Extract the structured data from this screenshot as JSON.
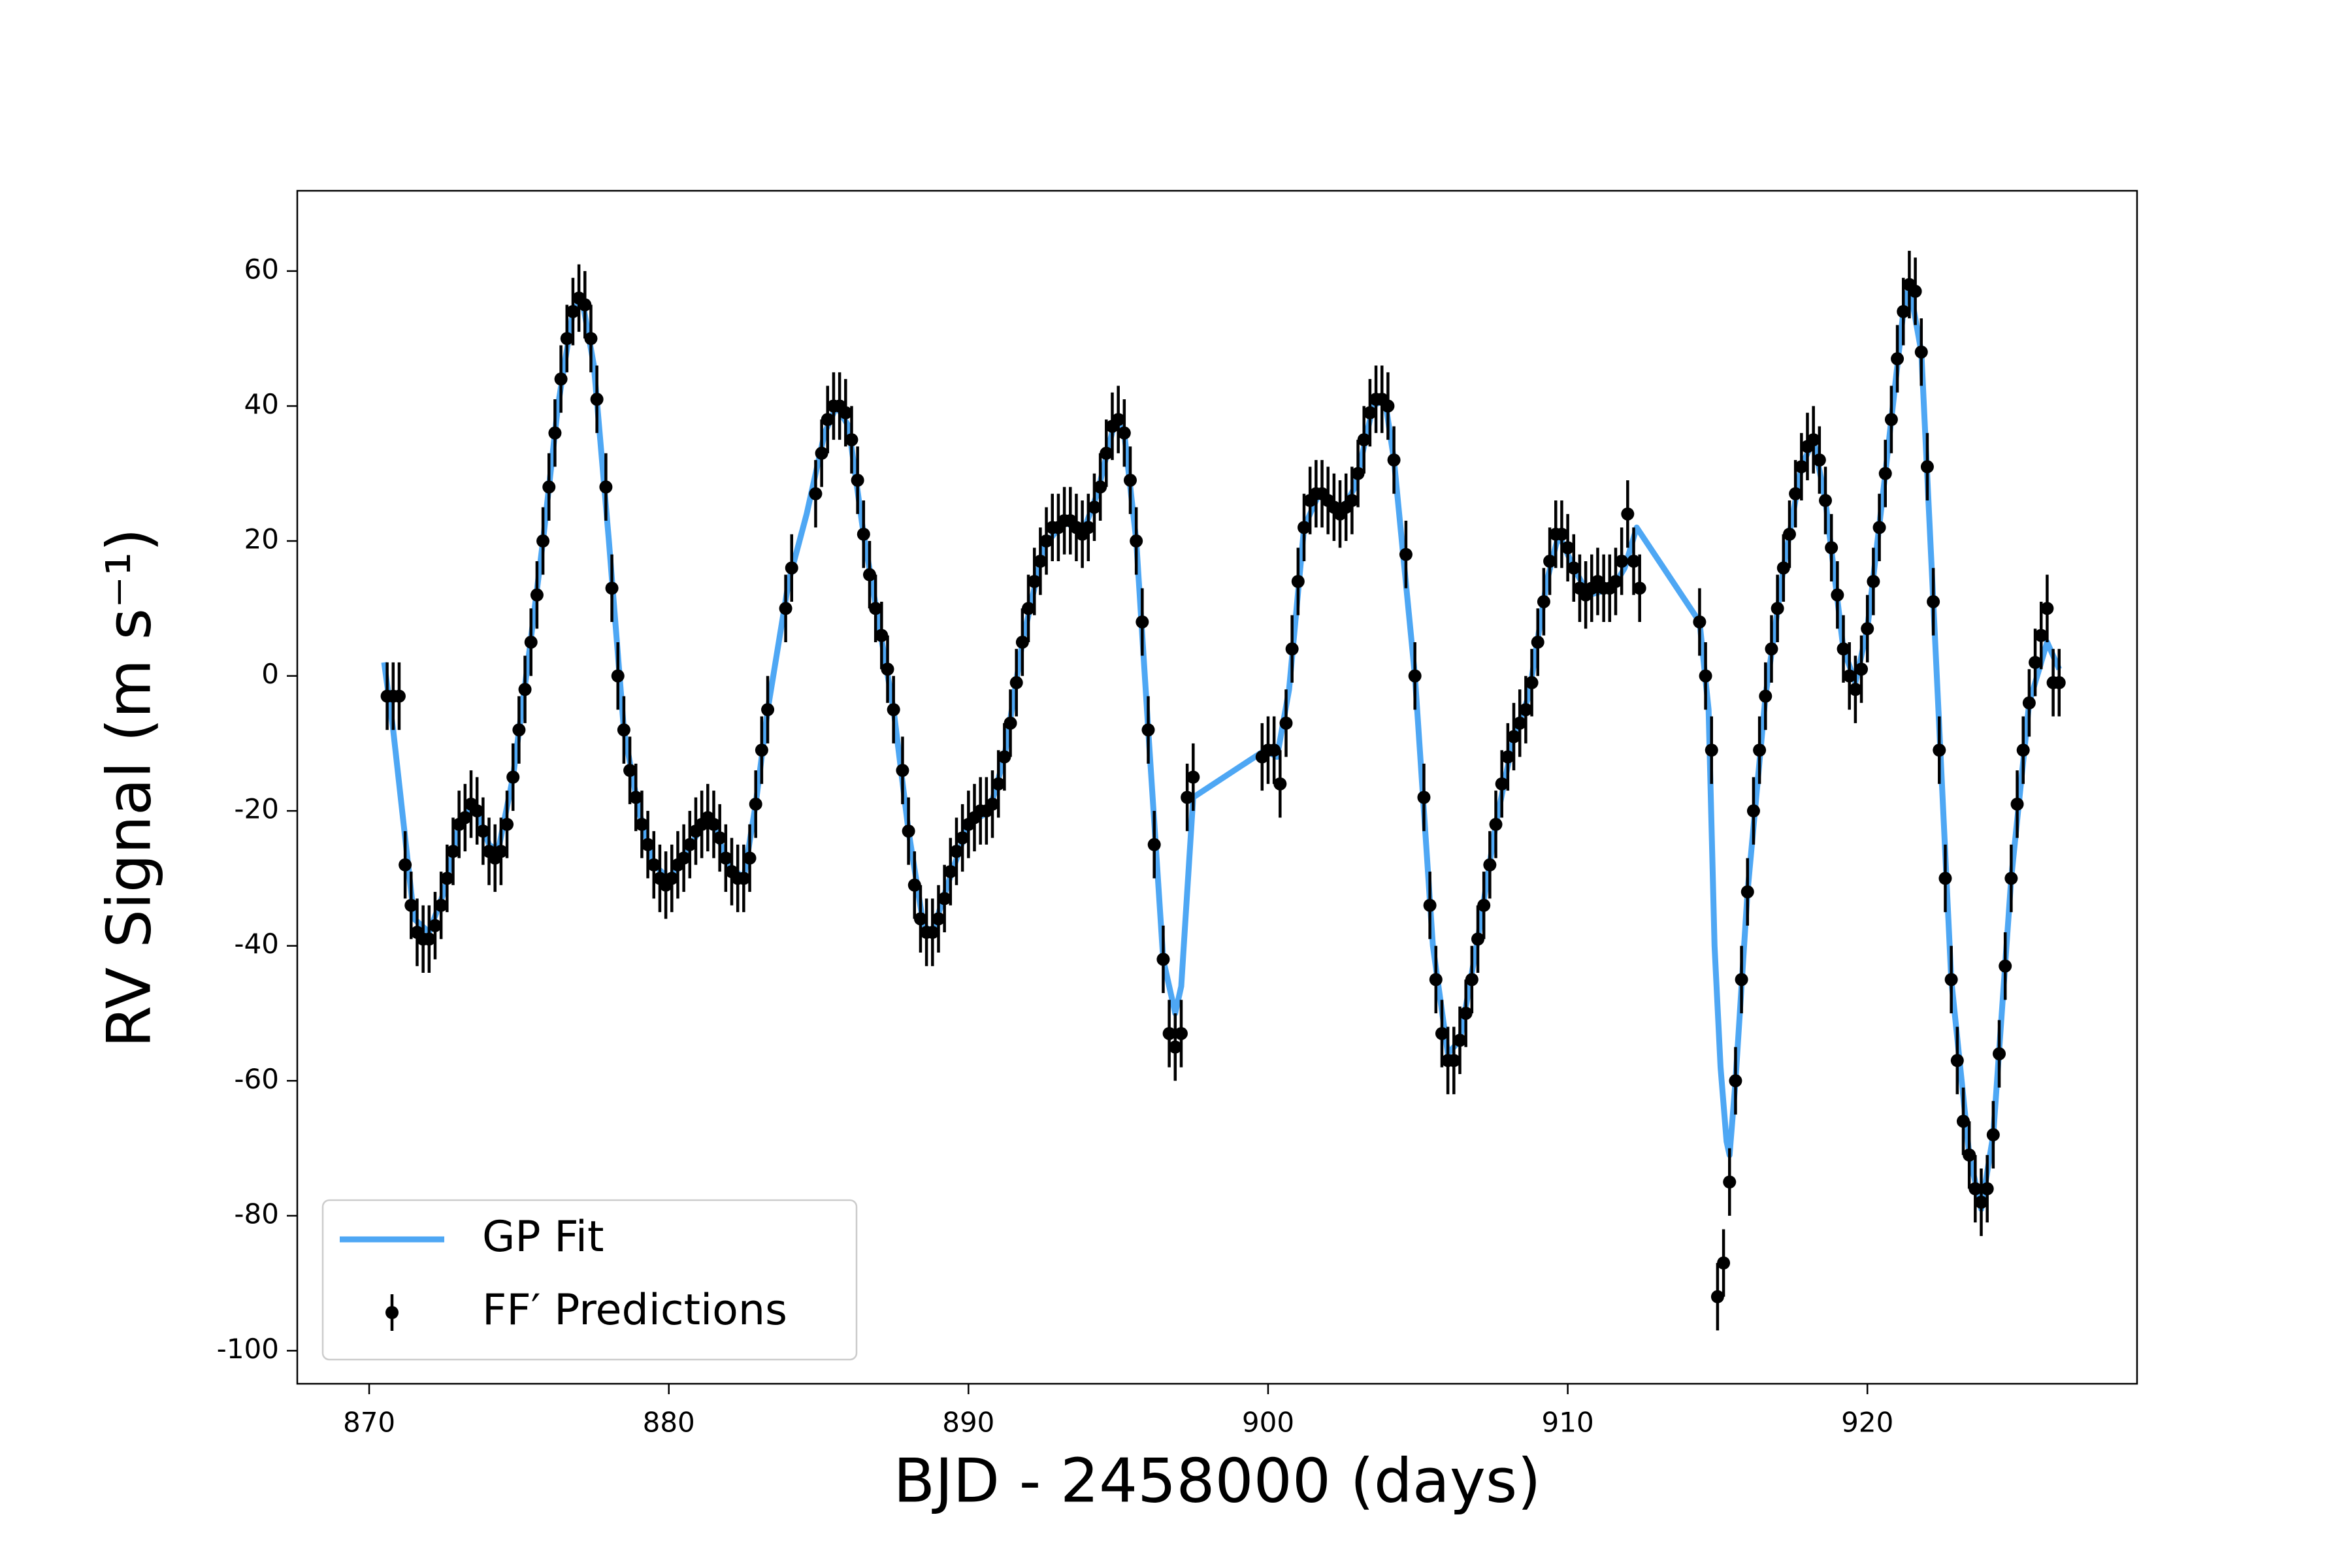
{
  "chart_data": {
    "type": "errorbar-scatter",
    "xlabel": "BJD - 2458000 (days)",
    "ylabel": "RV Signal (m s⁻¹)",
    "xlim": [
      867.6,
      929.0
    ],
    "xticks": [
      870,
      880,
      890,
      900,
      910,
      920
    ],
    "ylim": [
      -104.9,
      71.9
    ],
    "yticks": [
      -100,
      -80,
      -60,
      -40,
      -20,
      0,
      20,
      40,
      60
    ],
    "grid": false,
    "legend": "lower left",
    "series": [
      {
        "name": "GP Fit",
        "color": "#4ea7f4",
        "kind": "line",
        "x": [
          870.5,
          870.8,
          871.5,
          872.0,
          872.5,
          873.0,
          873.5,
          874.0,
          874.3,
          874.8,
          875.3,
          875.8,
          876.3,
          876.8,
          877.1,
          877.5,
          878.0,
          878.5,
          879.0,
          879.5,
          880.0,
          880.5,
          881.0,
          881.4,
          882.0,
          882.5,
          882.9,
          883.3,
          884.0,
          884.6,
          885.2,
          885.6,
          886.0,
          886.5,
          887.0,
          887.5,
          888.0,
          888.5,
          888.8,
          889.3,
          890.0,
          890.7,
          891.2,
          891.8,
          892.5,
          893.2,
          893.8,
          894.3,
          894.9,
          895.2,
          895.6,
          896.0,
          896.5,
          896.9,
          897.1,
          897.5,
          899.9,
          900.3,
          900.7,
          901.2,
          901.7,
          902.4,
          902.9,
          903.5,
          903.9,
          904.2,
          904.9,
          905.5,
          906.0,
          906.4,
          907.0,
          907.6,
          908.2,
          908.7,
          909.3,
          909.7,
          910.2,
          910.7,
          911.5,
          911.9,
          912.3,
          914.4,
          914.7,
          914.9,
          915.1,
          915.3,
          915.4,
          915.6,
          916.0,
          916.6,
          917.2,
          917.8,
          918.2,
          918.6,
          919.2,
          919.6,
          920.0,
          920.6,
          921.2,
          921.4,
          921.8,
          922.2,
          922.8,
          923.4,
          923.8,
          924.2,
          924.8,
          925.4,
          926.0,
          926.4
        ],
        "values": [
          2,
          -8,
          -36,
          -38,
          -32,
          -22,
          -19,
          -25,
          -26,
          -15,
          2,
          20,
          40,
          54,
          56,
          46,
          20,
          -8,
          -20,
          -28,
          -30,
          -27,
          -23,
          -21,
          -28,
          -30,
          -19,
          -5,
          14,
          24,
          36,
          40,
          37,
          21,
          8,
          -5,
          -23,
          -37,
          -38,
          -31,
          -22,
          -20,
          -12,
          5,
          19,
          23,
          21,
          27,
          38,
          36,
          20,
          -8,
          -42,
          -50,
          -46,
          -18,
          -11,
          -12,
          -2,
          22,
          27,
          24,
          28,
          40,
          41,
          32,
          0,
          -40,
          -56,
          -54,
          -39,
          -22,
          -9,
          -3,
          14,
          21,
          16,
          12,
          13,
          16,
          22,
          8,
          -5,
          -40,
          -58,
          -69,
          -71,
          -60,
          -32,
          -3,
          16,
          31,
          35,
          26,
          4,
          -1,
          7,
          30,
          54,
          58,
          48,
          11,
          -45,
          -71,
          -79,
          -68,
          -30,
          -4,
          5,
          1
        ]
      },
      {
        "name": "FF′ Predictions",
        "color": "#000000",
        "kind": "errorbar",
        "error": 5,
        "x": [
          870.6,
          870.8,
          871.0,
          871.2,
          871.4,
          871.6,
          871.8,
          872.0,
          872.2,
          872.4,
          872.6,
          872.8,
          873.0,
          873.2,
          873.4,
          873.6,
          873.8,
          874.0,
          874.2,
          874.4,
          874.6,
          874.8,
          875.0,
          875.2,
          875.4,
          875.6,
          875.8,
          876.0,
          876.2,
          876.4,
          876.6,
          876.8,
          877.0,
          877.2,
          877.4,
          877.6,
          877.9,
          878.1,
          878.3,
          878.5,
          878.7,
          878.9,
          879.1,
          879.3,
          879.5,
          879.7,
          879.9,
          880.1,
          880.3,
          880.5,
          880.7,
          880.9,
          881.1,
          881.3,
          881.5,
          881.7,
          881.9,
          882.1,
          882.3,
          882.5,
          882.7,
          882.9,
          883.1,
          883.3,
          883.9,
          884.1,
          884.9,
          885.1,
          885.3,
          885.5,
          885.7,
          885.9,
          886.1,
          886.3,
          886.5,
          886.7,
          886.9,
          887.1,
          887.3,
          887.5,
          887.8,
          888.0,
          888.2,
          888.4,
          888.6,
          888.8,
          889.0,
          889.2,
          889.4,
          889.6,
          889.8,
          890.0,
          890.2,
          890.4,
          890.6,
          890.8,
          891.0,
          891.2,
          891.4,
          891.6,
          891.8,
          892.0,
          892.2,
          892.4,
          892.6,
          892.8,
          893.0,
          893.2,
          893.4,
          893.6,
          893.8,
          894.0,
          894.2,
          894.4,
          894.6,
          894.8,
          895.0,
          895.2,
          895.4,
          895.6,
          895.8,
          896.0,
          896.2,
          896.5,
          896.7,
          896.9,
          897.1,
          897.3,
          897.5,
          899.8,
          900.0,
          900.2,
          900.4,
          900.6,
          900.8,
          901.0,
          901.2,
          901.4,
          901.6,
          901.8,
          902.0,
          902.2,
          902.4,
          902.6,
          902.8,
          903.0,
          903.2,
          903.4,
          903.6,
          903.8,
          904.0,
          904.2,
          904.6,
          904.9,
          905.2,
          905.4,
          905.6,
          905.8,
          906.0,
          906.2,
          906.4,
          906.6,
          906.8,
          907.0,
          907.2,
          907.4,
          907.6,
          907.8,
          908.0,
          908.2,
          908.4,
          908.6,
          908.8,
          909.0,
          909.2,
          909.4,
          909.6,
          909.8,
          910.0,
          910.2,
          910.4,
          910.6,
          910.8,
          911.0,
          911.2,
          911.4,
          911.6,
          911.8,
          912.0,
          912.2,
          912.4,
          914.4,
          914.6,
          914.8,
          915.0,
          915.2,
          915.4,
          915.6,
          915.8,
          916.0,
          916.2,
          916.4,
          916.6,
          916.8,
          917.0,
          917.2,
          917.4,
          917.6,
          917.8,
          918.0,
          918.2,
          918.4,
          918.6,
          918.8,
          919.0,
          919.2,
          919.4,
          919.6,
          919.8,
          920.0,
          920.2,
          920.4,
          920.6,
          920.8,
          921.0,
          921.2,
          921.4,
          921.6,
          921.8,
          922.0,
          922.2,
          922.4,
          922.6,
          922.8,
          923.0,
          923.2,
          923.4,
          923.6,
          923.8,
          924.0,
          924.2,
          924.4,
          924.6,
          924.8,
          925.0,
          925.2,
          925.4,
          925.6,
          925.8,
          926.0,
          926.2,
          926.4
        ],
        "values": [
          -3,
          -3,
          -3,
          -28,
          -34,
          -38,
          -39,
          -39,
          -37,
          -34,
          -30,
          -26,
          -22,
          -21,
          -19,
          -20,
          -23,
          -26,
          -27,
          -26,
          -22,
          -15,
          -8,
          -2,
          5,
          12,
          20,
          28,
          36,
          44,
          50,
          54,
          56,
          55,
          50,
          41,
          28,
          13,
          0,
          -8,
          -14,
          -18,
          -22,
          -25,
          -28,
          -30,
          -31,
          -30,
          -28,
          -27,
          -25,
          -23,
          -22,
          -21,
          -22,
          -24,
          -27,
          -29,
          -30,
          -30,
          -27,
          -19,
          -11,
          -5,
          10,
          16,
          27,
          33,
          38,
          40,
          40,
          39,
          35,
          29,
          21,
          15,
          10,
          6,
          1,
          -5,
          -14,
          -23,
          -31,
          -36,
          -38,
          -38,
          -36,
          -33,
          -29,
          -26,
          -24,
          -22,
          -21,
          -20,
          -20,
          -19,
          -16,
          -12,
          -7,
          -1,
          5,
          10,
          14,
          17,
          20,
          22,
          22,
          23,
          23,
          22,
          21,
          22,
          25,
          28,
          33,
          37,
          38,
          36,
          29,
          20,
          8,
          -8,
          -25,
          -42,
          -53,
          -55,
          -53,
          -18,
          -15,
          -12,
          -11,
          -11,
          -16,
          -7,
          4,
          14,
          22,
          26,
          27,
          27,
          26,
          25,
          24,
          25,
          26,
          30,
          35,
          39,
          41,
          41,
          40,
          32,
          18,
          0,
          -18,
          -34,
          -45,
          -53,
          -57,
          -57,
          -54,
          -50,
          -45,
          -39,
          -34,
          -28,
          -22,
          -16,
          -12,
          -9,
          -7,
          -5,
          -1,
          5,
          11,
          17,
          21,
          21,
          19,
          16,
          13,
          12,
          13,
          14,
          13,
          13,
          14,
          17,
          24,
          17,
          13,
          8,
          0,
          -11,
          -92,
          -87,
          -75,
          -60,
          -45,
          -32,
          -20,
          -11,
          -3,
          4,
          10,
          16,
          21,
          27,
          31,
          34,
          35,
          32,
          26,
          19,
          12,
          4,
          0,
          -2,
          1,
          7,
          14,
          22,
          30,
          38,
          47,
          54,
          58,
          57,
          48,
          31,
          11,
          -11,
          -30,
          -45,
          -57,
          -66,
          -71,
          -76,
          -78,
          -76,
          -68,
          -56,
          -43,
          -30,
          -19,
          -11,
          -4,
          2,
          6,
          10,
          -1,
          -1
        ]
      }
    ]
  }
}
